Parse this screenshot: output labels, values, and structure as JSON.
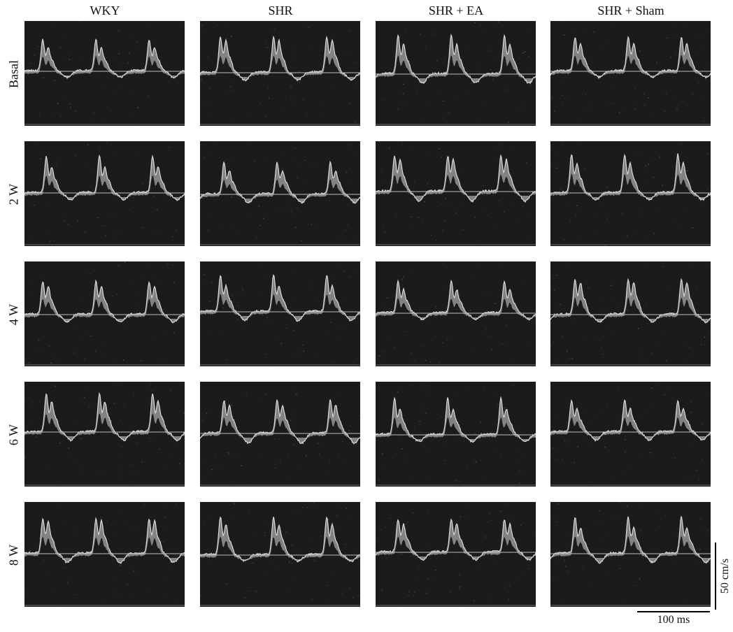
{
  "columns": [
    "WKY",
    "SHR",
    "SHR + EA",
    "SHR + Sham"
  ],
  "rows": [
    "Basal",
    "2 W",
    "4 W",
    "6 W",
    "8 W"
  ],
  "scale_bar": {
    "velocity_label": "50 cm/s",
    "time_label": "100 ms"
  },
  "colors": {
    "panel_background": "#1c1a1b",
    "doppler_signal": "#d9d9d9",
    "baseline": "#bdbdbd",
    "text": "#111111"
  }
}
